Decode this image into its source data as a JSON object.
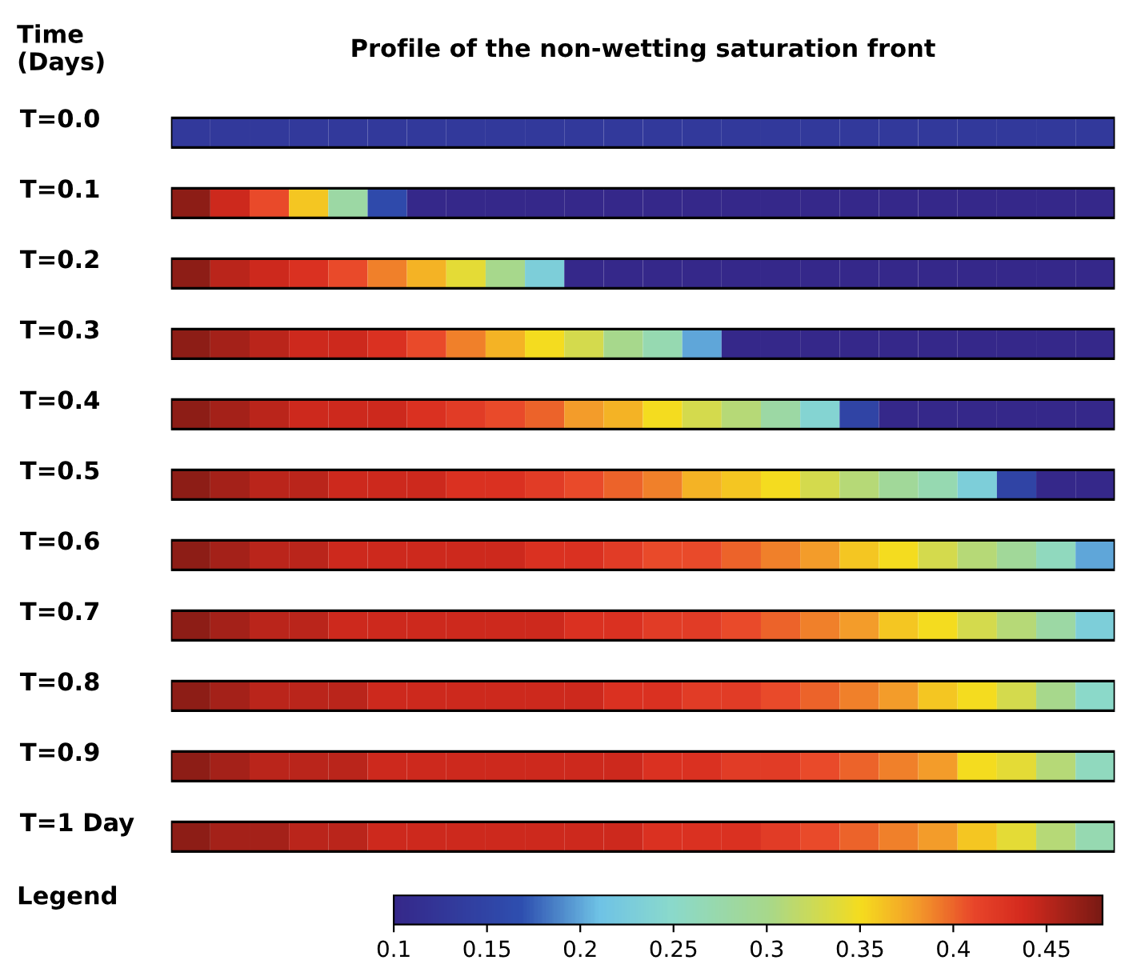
{
  "chart_data": {
    "type": "heatmap",
    "title": "Profile of the non-wetting saturation front",
    "ylabel": "Time (Days)",
    "clabel": "Legend",
    "categories": [
      null,
      null,
      null,
      null,
      null,
      null,
      null,
      null,
      null,
      null,
      null,
      null,
      null,
      null,
      null,
      null,
      null,
      null,
      null,
      null,
      null,
      null,
      null,
      null
    ],
    "y_categories": [
      "T=0.0",
      "T=0.1",
      "T=0.2",
      "T=0.3",
      "T=0.4",
      "T=0.5",
      "T=0.6",
      "T=0.7",
      "T=0.8",
      "T=0.9",
      "T=1 Day"
    ],
    "cells": [
      [
        0.13,
        0.13,
        0.13,
        0.13,
        0.13,
        0.13,
        0.13,
        0.13,
        0.13,
        0.13,
        0.13,
        0.13,
        0.13,
        0.13,
        0.13,
        0.13,
        0.13,
        0.13,
        0.13,
        0.13,
        0.13,
        0.13,
        0.13,
        0.13
      ],
      [
        0.47,
        0.44,
        0.41,
        0.36,
        0.28,
        0.16,
        0.1,
        0.1,
        0.1,
        0.1,
        0.1,
        0.1,
        0.1,
        0.1,
        0.1,
        0.1,
        0.1,
        0.1,
        0.1,
        0.1,
        0.1,
        0.1,
        0.1,
        0.1
      ],
      [
        0.47,
        0.45,
        0.44,
        0.43,
        0.41,
        0.39,
        0.37,
        0.34,
        0.3,
        0.23,
        0.1,
        0.1,
        0.1,
        0.1,
        0.1,
        0.1,
        0.1,
        0.1,
        0.1,
        0.1,
        0.1,
        0.1,
        0.1,
        0.1
      ],
      [
        0.47,
        0.46,
        0.45,
        0.44,
        0.44,
        0.43,
        0.41,
        0.39,
        0.37,
        0.35,
        0.33,
        0.3,
        0.27,
        0.2,
        0.1,
        0.1,
        0.1,
        0.1,
        0.1,
        0.1,
        0.1,
        0.1,
        0.1,
        0.1
      ],
      [
        0.47,
        0.46,
        0.45,
        0.44,
        0.44,
        0.44,
        0.43,
        0.42,
        0.41,
        0.4,
        0.38,
        0.37,
        0.35,
        0.33,
        0.31,
        0.28,
        0.24,
        0.15,
        0.1,
        0.1,
        0.1,
        0.1,
        0.1,
        0.1
      ],
      [
        0.47,
        0.46,
        0.45,
        0.45,
        0.44,
        0.44,
        0.44,
        0.43,
        0.43,
        0.42,
        0.41,
        0.4,
        0.39,
        0.37,
        0.36,
        0.35,
        0.33,
        0.31,
        0.29,
        0.27,
        0.23,
        0.15,
        0.1,
        0.1
      ],
      [
        0.47,
        0.46,
        0.45,
        0.45,
        0.44,
        0.44,
        0.44,
        0.44,
        0.44,
        0.43,
        0.43,
        0.42,
        0.41,
        0.41,
        0.4,
        0.39,
        0.38,
        0.36,
        0.35,
        0.33,
        0.31,
        0.29,
        0.26,
        0.2
      ],
      [
        0.47,
        0.46,
        0.45,
        0.45,
        0.44,
        0.44,
        0.44,
        0.44,
        0.44,
        0.44,
        0.43,
        0.43,
        0.42,
        0.42,
        0.41,
        0.4,
        0.39,
        0.38,
        0.36,
        0.35,
        0.33,
        0.31,
        0.28,
        0.23
      ],
      [
        0.47,
        0.46,
        0.45,
        0.45,
        0.45,
        0.44,
        0.44,
        0.44,
        0.44,
        0.44,
        0.44,
        0.43,
        0.43,
        0.42,
        0.42,
        0.41,
        0.4,
        0.39,
        0.38,
        0.36,
        0.35,
        0.33,
        0.3,
        0.25
      ],
      [
        0.47,
        0.46,
        0.45,
        0.45,
        0.45,
        0.44,
        0.44,
        0.44,
        0.44,
        0.44,
        0.44,
        0.44,
        0.43,
        0.43,
        0.42,
        0.42,
        0.41,
        0.4,
        0.39,
        0.38,
        0.35,
        0.34,
        0.31,
        0.26
      ],
      [
        0.47,
        0.46,
        0.46,
        0.45,
        0.45,
        0.44,
        0.44,
        0.44,
        0.44,
        0.44,
        0.44,
        0.44,
        0.43,
        0.43,
        0.43,
        0.42,
        0.41,
        0.4,
        0.39,
        0.38,
        0.36,
        0.34,
        0.31,
        0.27
      ]
    ],
    "clim": [
      0.1,
      0.48
    ],
    "cticks": [
      0.1,
      0.15,
      0.2,
      0.25,
      0.3,
      0.35,
      0.4,
      0.45
    ]
  }
}
